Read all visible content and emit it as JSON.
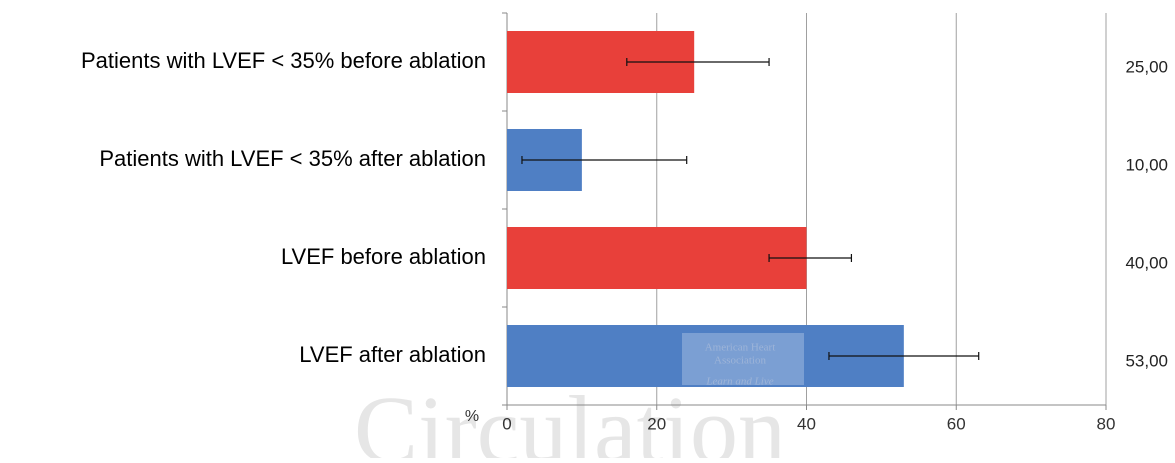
{
  "chart_data": {
    "type": "hbar_error",
    "categories": [
      "Patients with LVEF < 35% before ablation",
      "Patients with LVEF < 35% after ablation",
      "LVEF before ablation",
      "LVEF after ablation"
    ],
    "values": [
      25,
      10,
      40,
      53
    ],
    "value_labels": [
      "25,00",
      "10,00",
      "40,00",
      "53,00"
    ],
    "error_low": [
      9,
      8,
      5,
      10
    ],
    "error_high": [
      10,
      14,
      6,
      10
    ],
    "colors": [
      "#e8403a",
      "#4f7fc4",
      "#e8403a",
      "#4f7fc4"
    ],
    "xlabel": "%",
    "xlim": [
      0,
      80
    ],
    "xticks": [
      0,
      20,
      40,
      60,
      80
    ],
    "grid": true,
    "watermark": "Circulation",
    "logo_text": [
      "American Heart",
      "Association",
      "Learn and Live"
    ]
  }
}
